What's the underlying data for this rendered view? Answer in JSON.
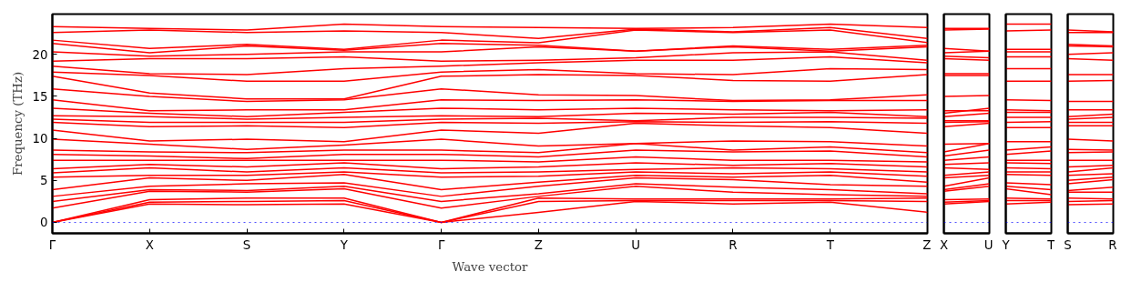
{
  "chart_data": [
    {
      "type": "line",
      "ylabel": "Frequency (THz)",
      "xlabel": "Wave vector",
      "categories": [
        "Γ",
        "X",
        "S",
        "Y",
        "Γ",
        "Z",
        "U",
        "R",
        "T",
        "Z"
      ],
      "ylim": [
        -1.3,
        24.8
      ],
      "yticks": [
        0,
        5,
        10,
        15,
        20
      ],
      "ref_lines": [
        {
          "axis": "y",
          "value": 0,
          "color": "#0000ff",
          "line_style": "dotted"
        }
      ],
      "series": [
        {
          "color": "#ff0000",
          "values": [
            0,
            2.2,
            2.1,
            2.2,
            0,
            1.2,
            2.5,
            2.2,
            2.4,
            1.2
          ]
        },
        {
          "color": "#ff0000",
          "values": [
            0,
            2.4,
            2.5,
            2.6,
            0,
            2.5,
            2.6,
            2.6,
            2.6,
            2.5
          ]
        },
        {
          "color": "#ff0000",
          "values": [
            0,
            2.7,
            2.9,
            2.9,
            0,
            2.9,
            2.8,
            2.8,
            2.8,
            2.9
          ]
        },
        {
          "color": "#ff0000",
          "values": [
            1.7,
            3.7,
            3.6,
            4.0,
            1.7,
            3.1,
            4.3,
            3.6,
            3.3,
            3.1
          ]
        },
        {
          "color": "#ff0000",
          "values": [
            2.5,
            3.9,
            3.8,
            4.3,
            2.5,
            3.4,
            4.6,
            4.2,
            3.9,
            3.4
          ]
        },
        {
          "color": "#ff0000",
          "values": [
            3.1,
            4.3,
            4.6,
            4.7,
            3.1,
            4.3,
            5.3,
            5.1,
            4.5,
            4.3
          ]
        },
        {
          "color": "#ff0000",
          "values": [
            3.9,
            5.3,
            5.0,
            5.7,
            3.9,
            4.8,
            5.6,
            5.4,
            5.6,
            4.8
          ]
        },
        {
          "color": "#ff0000",
          "values": [
            5.4,
            5.6,
            5.6,
            6.0,
            5.4,
            5.5,
            6.0,
            5.8,
            6.0,
            5.5
          ]
        },
        {
          "color": "#ff0000",
          "values": [
            5.9,
            6.5,
            6.0,
            6.5,
            5.9,
            6.0,
            6.3,
            6.5,
            6.4,
            6.0
          ]
        },
        {
          "color": "#ff0000",
          "values": [
            6.4,
            6.9,
            6.6,
            7.1,
            6.4,
            6.6,
            7.1,
            6.8,
            7.0,
            6.6
          ]
        },
        {
          "color": "#ff0000",
          "values": [
            7.4,
            7.4,
            7.4,
            7.4,
            7.4,
            7.2,
            7.8,
            7.4,
            7.4,
            7.2
          ]
        },
        {
          "color": "#ff0000",
          "values": [
            8.1,
            7.9,
            7.6,
            8.1,
            8.1,
            7.8,
            8.6,
            8.4,
            8.5,
            7.8
          ]
        },
        {
          "color": "#ff0000",
          "values": [
            8.6,
            8.4,
            8.3,
            8.6,
            8.6,
            8.3,
            9.4,
            8.6,
            9.0,
            8.3
          ]
        },
        {
          "color": "#ff0000",
          "values": [
            9.9,
            9.3,
            8.7,
            9.2,
            9.9,
            9.1,
            9.4,
            9.7,
            9.6,
            9.1
          ]
        },
        {
          "color": "#ff0000",
          "values": [
            11.0,
            9.7,
            9.9,
            9.6,
            11.0,
            10.6,
            11.8,
            11.5,
            11.3,
            10.6
          ]
        },
        {
          "color": "#ff0000",
          "values": [
            11.9,
            11.4,
            11.5,
            11.3,
            11.9,
            11.8,
            12.0,
            11.9,
            12.0,
            11.8
          ]
        },
        {
          "color": "#ff0000",
          "values": [
            12.3,
            11.9,
            11.9,
            11.9,
            12.3,
            12.4,
            12.1,
            12.5,
            12.5,
            12.4
          ]
        },
        {
          "color": "#ff0000",
          "values": [
            12.7,
            12.6,
            12.3,
            12.5,
            12.7,
            12.6,
            13.0,
            12.9,
            13.1,
            12.6
          ]
        },
        {
          "color": "#ff0000",
          "values": [
            13.6,
            13.0,
            12.6,
            13.1,
            13.6,
            13.4,
            13.6,
            13.4,
            13.3,
            13.4
          ]
        },
        {
          "color": "#ff0000",
          "values": [
            14.6,
            13.3,
            13.4,
            13.4,
            14.6,
            14.5,
            14.6,
            14.4,
            14.5,
            14.5
          ]
        },
        {
          "color": "#ff0000",
          "values": [
            15.9,
            15.0,
            14.4,
            14.6,
            15.9,
            15.2,
            15.1,
            14.5,
            14.6,
            15.2
          ]
        },
        {
          "color": "#ff0000",
          "values": [
            17.4,
            15.4,
            14.7,
            14.7,
            17.4,
            17.6,
            17.5,
            16.9,
            16.8,
            17.6
          ]
        },
        {
          "color": "#ff0000",
          "values": [
            17.9,
            17.5,
            16.8,
            16.8,
            17.9,
            18.2,
            17.7,
            17.6,
            18.3,
            18.2
          ]
        },
        {
          "color": "#ff0000",
          "values": [
            18.6,
            17.7,
            17.6,
            18.3,
            18.6,
            19.0,
            19.3,
            19.3,
            19.7,
            19.0
          ]
        },
        {
          "color": "#ff0000",
          "values": [
            19.2,
            19.5,
            19.5,
            19.7,
            19.2,
            19.3,
            19.6,
            20.2,
            20.3,
            19.3
          ]
        },
        {
          "color": "#ff0000",
          "values": [
            20.3,
            19.8,
            20.0,
            20.3,
            20.3,
            20.9,
            20.4,
            20.9,
            20.4,
            20.9
          ]
        },
        {
          "color": "#ff0000",
          "values": [
            21.3,
            20.2,
            21.0,
            20.5,
            21.3,
            21.1,
            20.4,
            21.0,
            20.6,
            21.1
          ]
        },
        {
          "color": "#ff0000",
          "values": [
            21.7,
            20.7,
            21.2,
            20.6,
            21.7,
            21.4,
            22.9,
            22.6,
            22.9,
            21.4
          ]
        },
        {
          "color": "#ff0000",
          "values": [
            22.6,
            22.9,
            22.6,
            22.8,
            22.6,
            21.9,
            23.0,
            22.7,
            23.2,
            21.9
          ]
        },
        {
          "color": "#ff0000",
          "values": [
            23.3,
            23.1,
            22.9,
            23.6,
            23.3,
            23.2,
            23.1,
            23.2,
            23.6,
            23.2
          ]
        }
      ]
    },
    {
      "type": "line",
      "categories": [
        "X",
        "U"
      ],
      "ylim": [
        -1.3,
        24.8
      ],
      "tick_labels": "x",
      "ref_lines": [
        {
          "axis": "y",
          "value": 0,
          "color": "#0000ff",
          "line_style": "dotted"
        }
      ],
      "series": [
        {
          "color": "#ff0000",
          "values": [
            2.2,
            2.5
          ]
        },
        {
          "color": "#ff0000",
          "values": [
            2.4,
            2.6
          ]
        },
        {
          "color": "#ff0000",
          "values": [
            2.7,
            2.8
          ]
        },
        {
          "color": "#ff0000",
          "values": [
            3.7,
            4.3
          ]
        },
        {
          "color": "#ff0000",
          "values": [
            3.9,
            4.6
          ]
        },
        {
          "color": "#ff0000",
          "values": [
            4.3,
            5.3
          ]
        },
        {
          "color": "#ff0000",
          "values": [
            5.3,
            5.6
          ]
        },
        {
          "color": "#ff0000",
          "values": [
            5.6,
            6.0
          ]
        },
        {
          "color": "#ff0000",
          "values": [
            6.5,
            6.3
          ]
        },
        {
          "color": "#ff0000",
          "values": [
            6.9,
            7.1
          ]
        },
        {
          "color": "#ff0000",
          "values": [
            7.4,
            7.8
          ]
        },
        {
          "color": "#ff0000",
          "values": [
            7.9,
            8.6
          ]
        },
        {
          "color": "#ff0000",
          "values": [
            8.4,
            9.4
          ]
        },
        {
          "color": "#ff0000",
          "values": [
            9.3,
            9.4
          ]
        },
        {
          "color": "#ff0000",
          "values": [
            11.4,
            11.8
          ]
        },
        {
          "color": "#ff0000",
          "values": [
            11.9,
            12.0
          ]
        },
        {
          "color": "#ff0000",
          "values": [
            12.1,
            12.1
          ]
        },
        {
          "color": "#ff0000",
          "values": [
            12.6,
            13.0
          ]
        },
        {
          "color": "#ff0000",
          "values": [
            13.0,
            13.6
          ]
        },
        {
          "color": "#ff0000",
          "values": [
            13.3,
            13.3
          ]
        },
        {
          "color": "#ff0000",
          "values": [
            15.0,
            15.1
          ]
        },
        {
          "color": "#ff0000",
          "values": [
            17.5,
            17.5
          ]
        },
        {
          "color": "#ff0000",
          "values": [
            17.7,
            17.7
          ]
        },
        {
          "color": "#ff0000",
          "values": [
            19.5,
            19.3
          ]
        },
        {
          "color": "#ff0000",
          "values": [
            19.8,
            19.6
          ]
        },
        {
          "color": "#ff0000",
          "values": [
            20.2,
            20.4
          ]
        },
        {
          "color": "#ff0000",
          "values": [
            20.7,
            20.4
          ]
        },
        {
          "color": "#ff0000",
          "values": [
            22.9,
            23.0
          ]
        },
        {
          "color": "#ff0000",
          "values": [
            23.1,
            23.1
          ]
        }
      ]
    },
    {
      "type": "line",
      "categories": [
        "Y",
        "T"
      ],
      "ylim": [
        -1.3,
        24.8
      ],
      "tick_labels": "x",
      "ref_lines": [
        {
          "axis": "y",
          "value": 0,
          "color": "#0000ff",
          "line_style": "dotted"
        }
      ],
      "series": [
        {
          "color": "#ff0000",
          "values": [
            2.2,
            2.4
          ]
        },
        {
          "color": "#ff0000",
          "values": [
            2.6,
            2.6
          ]
        },
        {
          "color": "#ff0000",
          "values": [
            2.9,
            2.8
          ]
        },
        {
          "color": "#ff0000",
          "values": [
            4.0,
            3.3
          ]
        },
        {
          "color": "#ff0000",
          "values": [
            4.3,
            3.9
          ]
        },
        {
          "color": "#ff0000",
          "values": [
            4.7,
            4.5
          ]
        },
        {
          "color": "#ff0000",
          "values": [
            5.7,
            5.6
          ]
        },
        {
          "color": "#ff0000",
          "values": [
            6.0,
            6.0
          ]
        },
        {
          "color": "#ff0000",
          "values": [
            6.5,
            6.4
          ]
        },
        {
          "color": "#ff0000",
          "values": [
            7.1,
            7.0
          ]
        },
        {
          "color": "#ff0000",
          "values": [
            7.4,
            7.4
          ]
        },
        {
          "color": "#ff0000",
          "values": [
            8.1,
            8.5
          ]
        },
        {
          "color": "#ff0000",
          "values": [
            8.6,
            9.0
          ]
        },
        {
          "color": "#ff0000",
          "values": [
            9.6,
            9.6
          ]
        },
        {
          "color": "#ff0000",
          "values": [
            11.3,
            11.3
          ]
        },
        {
          "color": "#ff0000",
          "values": [
            11.9,
            12.0
          ]
        },
        {
          "color": "#ff0000",
          "values": [
            12.5,
            12.5
          ]
        },
        {
          "color": "#ff0000",
          "values": [
            13.1,
            13.1
          ]
        },
        {
          "color": "#ff0000",
          "values": [
            13.4,
            13.3
          ]
        },
        {
          "color": "#ff0000",
          "values": [
            14.6,
            14.5
          ]
        },
        {
          "color": "#ff0000",
          "values": [
            16.8,
            16.8
          ]
        },
        {
          "color": "#ff0000",
          "values": [
            18.3,
            18.3
          ]
        },
        {
          "color": "#ff0000",
          "values": [
            19.7,
            19.7
          ]
        },
        {
          "color": "#ff0000",
          "values": [
            20.3,
            20.3
          ]
        },
        {
          "color": "#ff0000",
          "values": [
            20.6,
            20.6
          ]
        },
        {
          "color": "#ff0000",
          "values": [
            22.8,
            22.9
          ]
        },
        {
          "color": "#ff0000",
          "values": [
            23.6,
            23.6
          ]
        }
      ]
    },
    {
      "type": "line",
      "categories": [
        "S",
        "R"
      ],
      "ylim": [
        -1.3,
        24.8
      ],
      "tick_labels": "x",
      "ref_lines": [
        {
          "axis": "y",
          "value": 0,
          "color": "#0000ff",
          "line_style": "dotted"
        }
      ],
      "series": [
        {
          "color": "#ff0000",
          "values": [
            2.1,
            2.2
          ]
        },
        {
          "color": "#ff0000",
          "values": [
            2.5,
            2.6
          ]
        },
        {
          "color": "#ff0000",
          "values": [
            2.9,
            2.8
          ]
        },
        {
          "color": "#ff0000",
          "values": [
            3.6,
            3.6
          ]
        },
        {
          "color": "#ff0000",
          "values": [
            3.8,
            4.2
          ]
        },
        {
          "color": "#ff0000",
          "values": [
            4.6,
            5.1
          ]
        },
        {
          "color": "#ff0000",
          "values": [
            5.0,
            5.4
          ]
        },
        {
          "color": "#ff0000",
          "values": [
            5.6,
            5.8
          ]
        },
        {
          "color": "#ff0000",
          "values": [
            6.0,
            6.5
          ]
        },
        {
          "color": "#ff0000",
          "values": [
            6.6,
            6.8
          ]
        },
        {
          "color": "#ff0000",
          "values": [
            7.4,
            7.4
          ]
        },
        {
          "color": "#ff0000",
          "values": [
            8.3,
            8.4
          ]
        },
        {
          "color": "#ff0000",
          "values": [
            8.7,
            8.6
          ]
        },
        {
          "color": "#ff0000",
          "values": [
            9.9,
            9.7
          ]
        },
        {
          "color": "#ff0000",
          "values": [
            11.5,
            11.5
          ]
        },
        {
          "color": "#ff0000",
          "values": [
            11.9,
            11.9
          ]
        },
        {
          "color": "#ff0000",
          "values": [
            12.3,
            12.5
          ]
        },
        {
          "color": "#ff0000",
          "values": [
            12.6,
            12.9
          ]
        },
        {
          "color": "#ff0000",
          "values": [
            13.4,
            13.4
          ]
        },
        {
          "color": "#ff0000",
          "values": [
            14.4,
            14.4
          ]
        },
        {
          "color": "#ff0000",
          "values": [
            16.8,
            16.9
          ]
        },
        {
          "color": "#ff0000",
          "values": [
            17.6,
            17.6
          ]
        },
        {
          "color": "#ff0000",
          "values": [
            19.5,
            19.3
          ]
        },
        {
          "color": "#ff0000",
          "values": [
            20.0,
            20.2
          ]
        },
        {
          "color": "#ff0000",
          "values": [
            21.0,
            20.9
          ]
        },
        {
          "color": "#ff0000",
          "values": [
            21.2,
            21.0
          ]
        },
        {
          "color": "#ff0000",
          "values": [
            22.6,
            22.6
          ]
        },
        {
          "color": "#ff0000",
          "values": [
            22.9,
            22.7
          ]
        }
      ]
    }
  ]
}
